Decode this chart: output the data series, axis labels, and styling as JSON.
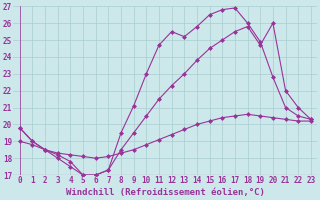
{
  "xlabel": "Windchill (Refroidissement éolien,°C)",
  "line1": {
    "x": [
      0,
      1,
      2,
      3,
      4,
      5,
      6,
      7,
      8,
      9,
      10,
      11,
      12,
      13,
      14,
      15,
      16,
      17,
      18,
      19,
      20,
      21,
      22,
      23
    ],
    "y": [
      19.8,
      19.0,
      18.5,
      18.0,
      17.5,
      17.0,
      17.0,
      17.3,
      19.5,
      21.1,
      23.0,
      24.7,
      25.5,
      25.2,
      25.8,
      26.5,
      26.8,
      26.9,
      26.0,
      24.9,
      22.8,
      21.0,
      20.5,
      20.3
    ]
  },
  "line2": {
    "x": [
      0,
      1,
      2,
      3,
      4,
      5,
      6,
      7,
      8,
      9,
      10,
      11,
      12,
      13,
      14,
      15,
      16,
      17,
      18,
      19,
      20,
      21,
      22,
      23
    ],
    "y": [
      19.8,
      19.0,
      18.5,
      18.2,
      17.8,
      17.0,
      17.0,
      17.3,
      18.5,
      19.5,
      20.5,
      21.5,
      22.3,
      23.0,
      23.8,
      24.5,
      25.0,
      25.5,
      25.8,
      24.7,
      26.0,
      22.0,
      21.0,
      20.3
    ]
  },
  "line3": {
    "x": [
      0,
      1,
      2,
      3,
      4,
      5,
      6,
      7,
      8,
      9,
      10,
      11,
      12,
      13,
      14,
      15,
      16,
      17,
      18,
      19,
      20,
      21,
      22,
      23
    ],
    "y": [
      19.0,
      18.8,
      18.5,
      18.3,
      18.2,
      18.1,
      18.0,
      18.1,
      18.3,
      18.5,
      18.8,
      19.1,
      19.4,
      19.7,
      20.0,
      20.2,
      20.4,
      20.5,
      20.6,
      20.5,
      20.4,
      20.3,
      20.2,
      20.2
    ]
  },
  "line_color": "#993399",
  "marker": "D",
  "markersize": 2,
  "linewidth": 0.8,
  "xlim": [
    -0.5,
    23.5
  ],
  "ylim": [
    17,
    27
  ],
  "yticks": [
    17,
    18,
    19,
    20,
    21,
    22,
    23,
    24,
    25,
    26,
    27
  ],
  "xticks": [
    0,
    1,
    2,
    3,
    4,
    5,
    6,
    7,
    8,
    9,
    10,
    11,
    12,
    13,
    14,
    15,
    16,
    17,
    18,
    19,
    20,
    21,
    22,
    23
  ],
  "bg_color": "#cce8ea",
  "grid_color": "#aacdd0",
  "xlabel_fontsize": 6.5,
  "tick_fontsize": 5.5
}
